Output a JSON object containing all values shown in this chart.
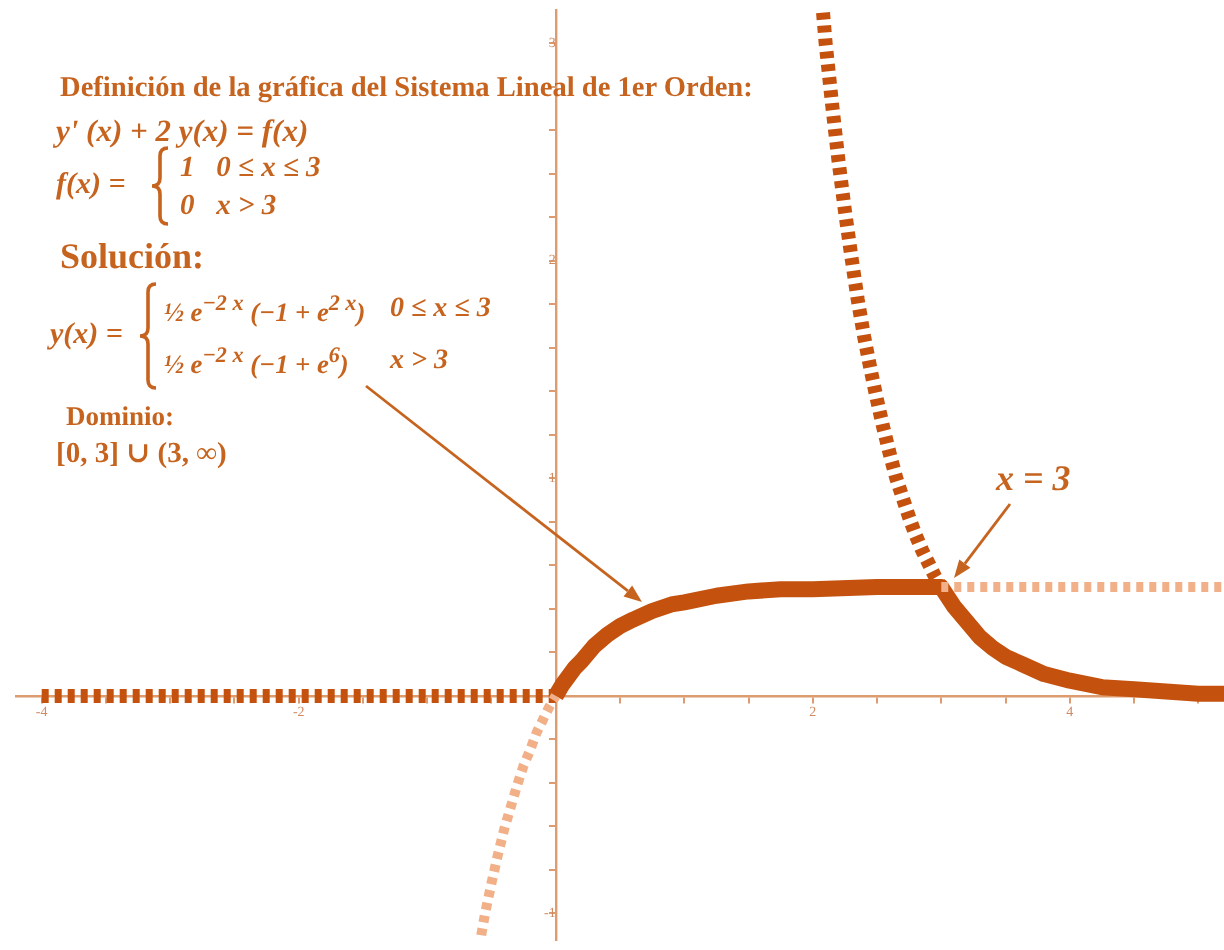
{
  "chart_data": {
    "type": "line",
    "annotations": [
      "Definición de la gráfica del Sistema Lineal de 1er Orden:",
      "y' (x) + 2 y(x) = f(x)",
      "f(x) =",
      "1   0 ≤ x ≤ 3",
      "0   x > 3",
      "Solución:",
      "y(x) =",
      "½ e$^{−2 x}$ (−1 + e$^{2 x}$)",
      "0 ≤ x ≤ 3",
      "½ e$^{−2 x}$ (−1 + e$^{6}$)",
      "x > 3",
      "Dominio:",
      "[0, 3] ∪ (3, ∞)",
      {
        "text": "x = 3",
        "x": 3,
        "y": 0.5
      }
    ],
    "xlim": [
      -4.2,
      5.2
    ],
    "xticks": [
      -4,
      {
        "value": -3.5,
        "label": null
      },
      {
        "value": -3,
        "label": null
      },
      {
        "value": -2.5,
        "label": null
      },
      -2,
      {
        "value": -1.5,
        "label": null
      },
      {
        "value": -1,
        "label": null
      },
      {
        "value": -0.5,
        "label": null
      },
      {
        "value": 0.5,
        "label": null
      },
      {
        "value": 1,
        "label": null
      },
      {
        "value": 1.5,
        "label": null
      },
      2,
      {
        "value": 2.5,
        "label": null
      },
      {
        "value": 3,
        "label": null
      },
      {
        "value": 3.5,
        "label": null
      },
      4,
      {
        "value": 4.5,
        "label": null
      },
      {
        "value": 5,
        "label": null
      }
    ],
    "ylim": [
      -1.12,
      3.15
    ],
    "yticks": [
      -1,
      {
        "value": -0.8,
        "label": null
      },
      {
        "value": -0.6,
        "label": null
      },
      {
        "value": -0.4,
        "label": null
      },
      {
        "value": -0.2,
        "label": null
      },
      {
        "value": 0.2,
        "label": null
      },
      {
        "value": 0.4,
        "label": null
      },
      {
        "value": 0.6,
        "label": null
      },
      {
        "value": 0.8,
        "label": null
      },
      1,
      {
        "value": 1.2,
        "label": null
      },
      {
        "value": 1.4,
        "label": null
      },
      {
        "value": 1.6,
        "label": null
      },
      {
        "value": 1.8,
        "label": null
      },
      2,
      {
        "value": 2.2,
        "label": null
      },
      {
        "value": 2.4,
        "label": null
      },
      {
        "value": 2.6,
        "label": null
      },
      {
        "value": 2.8,
        "label": null
      },
      3
    ],
    "marker": "none",
    "series": [
      {
        "color": "#f2b089",
        "line_style": "dashed",
        "x": [
          -0.58,
          -0.55,
          -0.5,
          -0.45,
          -0.4,
          -0.35,
          -0.3,
          -0.25,
          -0.2,
          -0.15,
          -0.1,
          -0.05,
          0
        ],
        "values": [
          -1.1,
          -1,
          -0.86,
          -0.73,
          -0.61,
          -0.51,
          -0.41,
          -0.32,
          -0.25,
          -0.17,
          -0.11,
          -0.05,
          0
        ]
      },
      {
        "color": "#f2b089",
        "line_style": "dashed",
        "x": [
          3,
          5.2
        ],
        "values": [
          0.5,
          0.5
        ]
      },
      {
        "color": "#c4520e",
        "line_style": "dashed",
        "x": [
          -4,
          0
        ],
        "values": [
          0,
          0
        ]
      },
      {
        "color": "#c4520e",
        "line_style": "dashed",
        "x": [
          2.08,
          2.1,
          2.15,
          2.2,
          2.25,
          2.3,
          2.35,
          2.4,
          2.45,
          2.5,
          2.55,
          2.6,
          2.65,
          2.7,
          2.75,
          2.8,
          2.85,
          2.9,
          2.95,
          3
        ],
        "values": [
          3.14,
          3,
          2.72,
          2.46,
          2.23,
          2.02,
          1.82,
          1.65,
          1.5,
          1.36,
          1.23,
          1.11,
          1,
          0.91,
          0.82,
          0.74,
          0.67,
          0.61,
          0.55,
          0.5
        ]
      },
      {
        "color": "#c4520e",
        "line_style": "solid",
        "x": [
          0,
          0.05,
          0.1,
          0.15,
          0.2,
          0.3,
          0.4,
          0.5,
          0.6,
          0.75,
          0.9,
          1,
          1.25,
          1.5,
          1.75,
          2,
          2.5,
          3,
          3.1,
          3.2,
          3.3,
          3.4,
          3.5,
          3.65,
          3.8,
          4,
          4.25,
          4.5,
          4.75,
          5,
          5.2
        ],
        "values": [
          0,
          0.05,
          0.09,
          0.13,
          0.16,
          0.23,
          0.28,
          0.32,
          0.35,
          0.39,
          0.42,
          0.43,
          0.46,
          0.48,
          0.49,
          0.49,
          0.5,
          0.5,
          0.41,
          0.34,
          0.27,
          0.22,
          0.18,
          0.14,
          0.1,
          0.07,
          0.04,
          0.03,
          0.02,
          0.01,
          0.01
        ]
      }
    ]
  }
}
